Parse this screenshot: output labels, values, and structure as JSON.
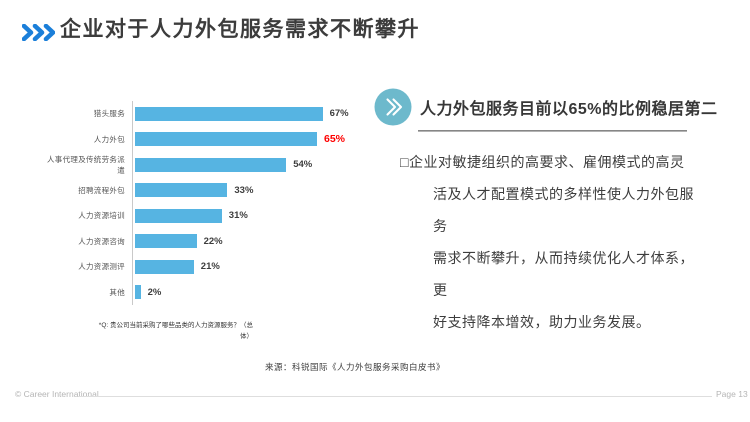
{
  "header": {
    "title": "企业对于人力外包服务需求不断攀升"
  },
  "chart_data": {
    "type": "bar",
    "orientation": "horizontal",
    "title": "",
    "xlabel": "",
    "ylabel": "",
    "xlim": [
      0,
      100
    ],
    "grid": false,
    "legend": false,
    "categories": [
      "猎头服务",
      "人力外包",
      "人事代理及传统劳务派遣",
      "招聘流程外包",
      "人力资源培训",
      "人力资源咨询",
      "人力资源测评",
      "其他"
    ],
    "values": [
      67,
      65,
      54,
      33,
      31,
      22,
      21,
      2
    ],
    "unit": "%",
    "highlight_index": 1,
    "bar_color": "#56b4e2",
    "value_color": "#3d3d3d",
    "highlight_value_color": "#ff0000",
    "footnote": "*Q: 贵公司当前采购了哪些品类的人力资源服务？（总\n体）"
  },
  "right_panel": {
    "heading": "人力外包服务目前以65%的比例稳居第二",
    "body": "□企业对敏捷组织的高要求、雇佣模式的高灵\n活及人才配置模式的多样性使人力外包服务\n需求不断攀升，从而持续优化人才体系，更\n好支持降本增效，助力业务发展。"
  },
  "source": "来源：科锐国际《人力外包服务采购白皮书》",
  "footer": {
    "left": "© Career International",
    "right": "Page 13"
  },
  "colors": {
    "accent_blue": "#1b7fd9",
    "bar_blue": "#56b4e2",
    "badge_teal": "#6db9cc",
    "highlight_red": "#ff0000"
  },
  "icons": {
    "title_chevrons": "triple-chevron-right",
    "badge": "double-chevron-right-circle"
  }
}
